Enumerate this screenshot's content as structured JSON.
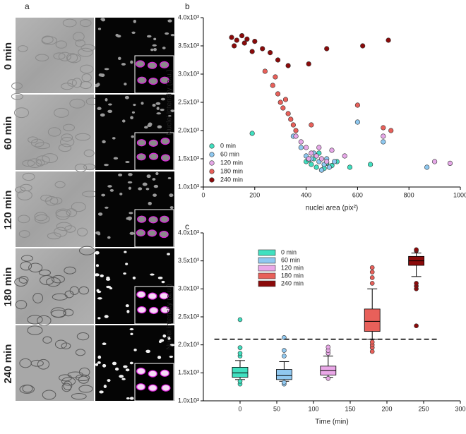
{
  "panel_labels": [
    "a",
    "b",
    "c"
  ],
  "image_panel": {
    "rows": [
      "0 min",
      "60 min",
      "120 min",
      "180 min",
      "240 min"
    ]
  },
  "chart_data": [
    {
      "type": "scatter",
      "xlabel": "nuclei area (pix²)",
      "ylabel": "Nuclei intensity (a.u.)",
      "xlim": [
        0,
        1000
      ],
      "xticks": [
        0,
        200,
        400,
        600,
        800,
        1000
      ],
      "ylim": [
        1000,
        4000
      ],
      "yticks": [
        {
          "value": 1000,
          "label": "1.0x10³"
        },
        {
          "value": 1500,
          "label": "1.5x10³"
        },
        {
          "value": 2000,
          "label": "2.0x10³"
        },
        {
          "value": 2500,
          "label": "2.5x10³"
        },
        {
          "value": 3000,
          "label": "3.0x10³"
        },
        {
          "value": 3500,
          "label": "3.5x10³"
        },
        {
          "value": 4000,
          "label": "4.0x10³"
        }
      ],
      "legend": "lower left",
      "series": [
        {
          "name": "0 min",
          "color": "#40e0c0",
          "x": [
            190,
            400,
            420,
            440,
            460,
            480,
            500,
            520,
            430,
            470,
            410,
            650,
            570,
            450
          ],
          "values": [
            1950,
            1450,
            1400,
            1350,
            1300,
            1420,
            1380,
            1450,
            1500,
            1330,
            1480,
            1400,
            1350,
            1600
          ]
        },
        {
          "name": "60 min",
          "color": "#8ec8f0",
          "x": [
            350,
            400,
            420,
            450,
            470,
            490,
            510,
            430,
            460,
            600,
            700,
            870,
            380,
            480
          ],
          "values": [
            1900,
            1550,
            1500,
            1450,
            1400,
            1350,
            1450,
            1600,
            1300,
            2150,
            1800,
            1350,
            1700,
            1500
          ]
        },
        {
          "name": "120 min",
          "color": "#e6a8e8",
          "x": [
            380,
            400,
            420,
            440,
            460,
            480,
            500,
            410,
            450,
            360,
            700,
            900,
            960,
            550
          ],
          "values": [
            1800,
            1700,
            1600,
            1550,
            1500,
            1450,
            1650,
            1500,
            1700,
            1900,
            1900,
            1450,
            1420,
            1550
          ]
        },
        {
          "name": "180 min",
          "color": "#e8605a",
          "x": [
            240,
            270,
            290,
            300,
            310,
            330,
            340,
            350,
            320,
            360,
            280,
            600,
            700,
            730,
            420
          ],
          "values": [
            3050,
            2800,
            2650,
            2500,
            2400,
            2300,
            2200,
            2100,
            2550,
            2000,
            2950,
            2450,
            2050,
            2000,
            2100
          ]
        },
        {
          "name": "240 min",
          "color": "#8b0a0a",
          "x": [
            110,
            130,
            150,
            170,
            120,
            160,
            200,
            230,
            260,
            290,
            330,
            410,
            480,
            620,
            720,
            190
          ],
          "values": [
            3650,
            3600,
            3680,
            3620,
            3500,
            3550,
            3580,
            3450,
            3380,
            3250,
            3150,
            3180,
            3450,
            3500,
            3600,
            3400
          ]
        }
      ]
    },
    {
      "type": "box",
      "xlabel": "Time (min)",
      "ylabel": "Nuclei intensity (a.u.)",
      "xlim": [
        -50,
        300
      ],
      "xticks": [
        0,
        50,
        100,
        150,
        200,
        250,
        300
      ],
      "ylim": [
        1000,
        4000
      ],
      "yticks": [
        {
          "value": 1000,
          "label": "1.0x10³"
        },
        {
          "value": 1500,
          "label": "1.5x10³"
        },
        {
          "value": 2000,
          "label": "2.0x10³"
        },
        {
          "value": 2500,
          "label": "2.5x10³"
        },
        {
          "value": 3000,
          "label": "3.0x10³"
        },
        {
          "value": 3500,
          "label": "3.5x10³"
        },
        {
          "value": 4000,
          "label": "4.0x10³"
        }
      ],
      "threshold": {
        "y": 2100,
        "x": [
          -35,
          270
        ]
      },
      "legend": "upper left",
      "series": [
        {
          "name": "0 min",
          "color": "#40e0c0",
          "x": 0,
          "whisker_low": 1380,
          "q1": 1420,
          "median": 1500,
          "q3": 1600,
          "whisker_high": 1720,
          "outliers": [
            1300,
            1350,
            1800,
            1850,
            1950,
            2450
          ]
        },
        {
          "name": "60 min",
          "color": "#90c8f0",
          "x": 60,
          "whisker_low": 1350,
          "q1": 1380,
          "median": 1450,
          "q3": 1560,
          "whisker_high": 1700,
          "outliers": [
            1300,
            1330,
            1800,
            1900,
            2130
          ]
        },
        {
          "name": "120 min",
          "color": "#eaa8e8",
          "x": 120,
          "whisker_low": 1420,
          "q1": 1460,
          "median": 1540,
          "q3": 1620,
          "whisker_high": 1800,
          "outliers": [
            1400,
            1850,
            1900,
            1960
          ]
        },
        {
          "name": "180 min",
          "color": "#e8605a",
          "x": 180,
          "whisker_low": 2100,
          "q1": 2240,
          "median": 2420,
          "q3": 2640,
          "whisker_high": 3000,
          "outliers": [
            1880,
            1950,
            2000,
            2050,
            3100,
            3200,
            3300,
            3380
          ]
        },
        {
          "name": "240 min",
          "color": "#8b0a0a",
          "x": 240,
          "whisker_low": 3220,
          "q1": 3420,
          "median": 3500,
          "q3": 3580,
          "whisker_high": 3640,
          "outliers": [
            2340,
            3000,
            3050,
            3100,
            3680,
            3700
          ]
        }
      ]
    }
  ]
}
